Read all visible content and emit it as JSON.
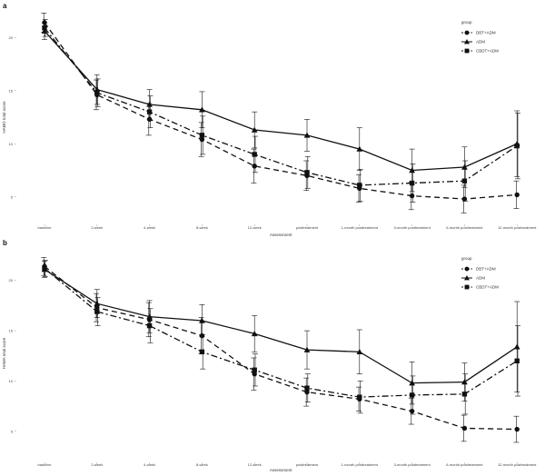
{
  "chart_data": [
    {
      "panel": "a",
      "type": "line",
      "xlabel": "Assessment",
      "ylabel": "HAMD total score",
      "ylim": [
        2.5,
        22.5
      ],
      "yticks": [
        5,
        10,
        15,
        20
      ],
      "categories": [
        "baseline",
        "2-week",
        "4-week",
        "8-week",
        "12-week",
        "posttreatment",
        "1-month posttreatment",
        "3-month posttreatment",
        "6-month posttreatment",
        "12-month posttreatment"
      ],
      "legend_title": "group",
      "series": [
        {
          "name": "DBT+ADM",
          "marker": "circle",
          "dash": "6,4",
          "values": [
            21.4,
            14.6,
            12.3,
            10.4,
            7.9,
            7.0,
            5.8,
            5.1,
            4.8,
            5.2
          ],
          "err": [
            0.9,
            1.4,
            1.5,
            1.6,
            1.6,
            1.4,
            1.3,
            1.3,
            1.3,
            1.3
          ]
        },
        {
          "name": "ADM",
          "marker": "triangle",
          "dash": "",
          "values": [
            20.6,
            15.1,
            13.7,
            13.2,
            11.3,
            10.8,
            9.5,
            7.5,
            7.8,
            10.0
          ],
          "err": [
            0.8,
            1.4,
            1.4,
            1.7,
            1.7,
            1.5,
            2.0,
            2.0,
            1.9,
            3.1
          ]
        },
        {
          "name": "CBDT+ADM",
          "marker": "square",
          "dash": "7,3,2,3",
          "values": [
            20.9,
            14.8,
            13.0,
            10.8,
            9.0,
            7.3,
            6.1,
            6.3,
            6.5,
            9.8
          ],
          "err": [
            0.8,
            1.3,
            1.5,
            1.8,
            1.7,
            1.5,
            1.5,
            1.8,
            1.9,
            3.1
          ]
        }
      ]
    },
    {
      "panel": "b",
      "type": "line",
      "xlabel": "Assessment",
      "ylabel": "HAMA total score",
      "ylim": [
        2,
        23.5
      ],
      "yticks": [
        5,
        10,
        15,
        20
      ],
      "categories": [
        "baseline",
        "2-week",
        "4-week",
        "8-week",
        "12-week",
        "posttreatment",
        "1-month posttreatment",
        "3-month posttreatment",
        "6-month posttreatment",
        "12-month posttreatment"
      ],
      "legend_title": "group",
      "series": [
        {
          "name": "DBT+ADM",
          "marker": "circle",
          "dash": "6,4",
          "values": [
            21.4,
            17.3,
            16.1,
            14.5,
            10.7,
            8.9,
            8.2,
            7.0,
            5.3,
            5.2
          ],
          "err": [
            0.9,
            1.4,
            1.7,
            1.8,
            1.6,
            1.4,
            1.2,
            1.3,
            1.3,
            1.3
          ]
        },
        {
          "name": "ADM",
          "marker": "triangle",
          "dash": "",
          "values": [
            21.1,
            17.7,
            16.4,
            16.0,
            14.7,
            13.1,
            12.9,
            9.8,
            9.9,
            13.4
          ],
          "err": [
            0.8,
            1.4,
            1.6,
            1.6,
            1.8,
            1.9,
            2.2,
            2.1,
            1.9,
            4.5
          ]
        },
        {
          "name": "CBDT+ADM",
          "marker": "square",
          "dash": "7,3,2,3",
          "values": [
            21.2,
            16.9,
            15.5,
            12.9,
            11.1,
            9.3,
            8.4,
            8.6,
            8.7,
            12.0
          ],
          "err": [
            0.8,
            1.4,
            1.7,
            1.7,
            1.6,
            1.4,
            1.6,
            1.9,
            2.0,
            3.5
          ]
        }
      ]
    }
  ]
}
